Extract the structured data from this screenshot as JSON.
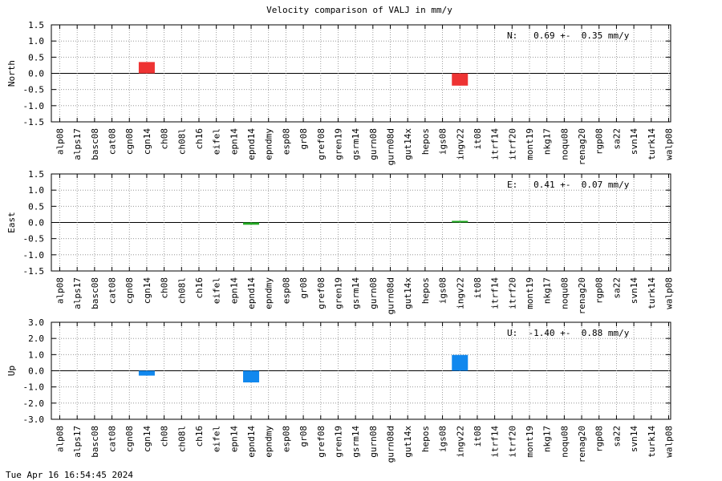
{
  "title": "Velocity comparison of VALJ in mm/y",
  "footer_timestamp": "Tue Apr 16 16:54:45 2024",
  "colors": {
    "north": "#ee3333",
    "east": "#22aa22",
    "up": "#1188ee"
  },
  "chart_data": [
    {
      "type": "bar",
      "ylabel": "North",
      "ylim": [
        -1.5,
        1.5
      ],
      "yticks": [
        "-1.5",
        "-1.0",
        "-0.5",
        "0.0",
        "0.5",
        "1.0",
        "1.5"
      ],
      "grid": true,
      "annotation": "N:   0.69 +-  0.35 mm/y",
      "categories": [
        "alp08",
        "alps17",
        "basc08",
        "cat08",
        "cgn08",
        "cgn14",
        "ch08",
        "ch08l",
        "ch16",
        "eifel",
        "epn14",
        "epnd14",
        "epndmy",
        "esp08",
        "gr08",
        "gref08",
        "gren19",
        "gsrm14",
        "gurn08",
        "gurn08d",
        "gut14x",
        "hepos",
        "igs08",
        "ingv22",
        "it08",
        "itrf14",
        "itrf20",
        "mont19",
        "nkg17",
        "noqu08",
        "renag20",
        "rgp08",
        "sa22",
        "svn14",
        "turk14",
        "walp08"
      ],
      "values": [
        null,
        null,
        null,
        null,
        null,
        0.35,
        null,
        null,
        null,
        null,
        null,
        null,
        null,
        null,
        null,
        null,
        null,
        null,
        null,
        null,
        null,
        null,
        null,
        -0.38,
        null,
        null,
        null,
        null,
        null,
        null,
        null,
        null,
        null,
        null,
        null,
        null
      ]
    },
    {
      "type": "bar",
      "ylabel": "East",
      "ylim": [
        -1.5,
        1.5
      ],
      "yticks": [
        "-1.5",
        "-1.0",
        "-0.5",
        "0.0",
        "0.5",
        "1.0",
        "1.5"
      ],
      "grid": true,
      "annotation": "E:   0.41 +-  0.07 mm/y",
      "categories": [
        "alp08",
        "alps17",
        "basc08",
        "cat08",
        "cgn08",
        "cgn14",
        "ch08",
        "ch08l",
        "ch16",
        "eifel",
        "epn14",
        "epnd14",
        "epndmy",
        "esp08",
        "gr08",
        "gref08",
        "gren19",
        "gsrm14",
        "gurn08",
        "gurn08d",
        "gut14x",
        "hepos",
        "igs08",
        "ingv22",
        "it08",
        "itrf14",
        "itrf20",
        "mont19",
        "nkg17",
        "noqu08",
        "renag20",
        "rgp08",
        "sa22",
        "svn14",
        "turk14",
        "walp08"
      ],
      "values": [
        null,
        null,
        null,
        null,
        null,
        null,
        null,
        null,
        null,
        null,
        null,
        -0.07,
        null,
        null,
        null,
        null,
        null,
        null,
        null,
        null,
        null,
        null,
        null,
        0.05,
        null,
        null,
        null,
        null,
        null,
        null,
        null,
        null,
        null,
        null,
        null,
        null
      ]
    },
    {
      "type": "bar",
      "ylabel": "Up",
      "ylim": [
        -3.0,
        3.0
      ],
      "yticks": [
        "-3.0",
        "-2.0",
        "-1.0",
        "0.0",
        "1.0",
        "2.0",
        "3.0"
      ],
      "grid": true,
      "annotation": "U:  -1.40 +-  0.88 mm/y",
      "categories": [
        "alp08",
        "alps17",
        "basc08",
        "cat08",
        "cgn08",
        "cgn14",
        "ch08",
        "ch08l",
        "ch16",
        "eifel",
        "epn14",
        "epnd14",
        "epndmy",
        "esp08",
        "gr08",
        "gref08",
        "gren19",
        "gsrm14",
        "gurn08",
        "gurn08d",
        "gut14x",
        "hepos",
        "igs08",
        "ingv22",
        "it08",
        "itrf14",
        "itrf20",
        "mont19",
        "nkg17",
        "noqu08",
        "renag20",
        "rgp08",
        "sa22",
        "svn14",
        "turk14",
        "walp08"
      ],
      "values": [
        null,
        null,
        null,
        null,
        null,
        -0.3,
        null,
        null,
        null,
        null,
        null,
        -0.72,
        null,
        null,
        null,
        null,
        null,
        null,
        null,
        null,
        null,
        null,
        null,
        0.98,
        null,
        null,
        null,
        null,
        null,
        null,
        null,
        null,
        null,
        null,
        null,
        null
      ]
    }
  ]
}
